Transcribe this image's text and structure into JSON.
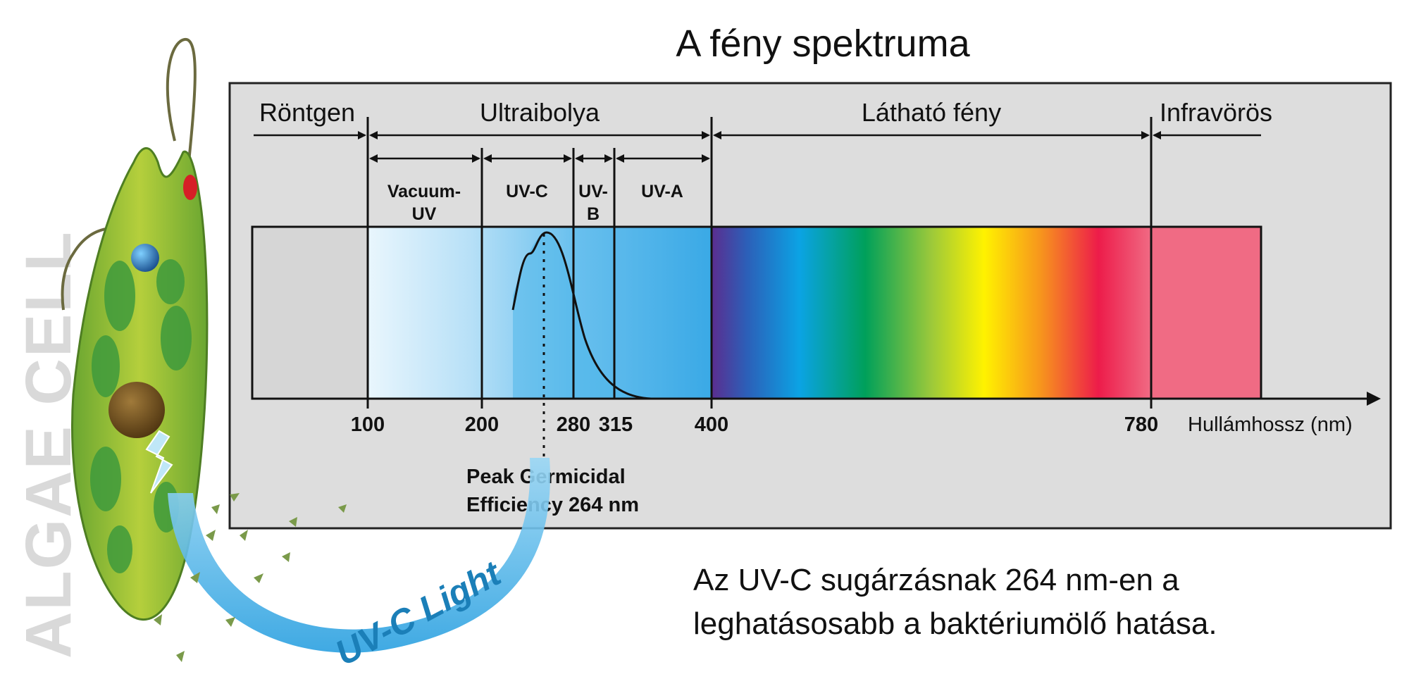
{
  "title": "A fény spektruma",
  "regions": {
    "xray": "Röntgen",
    "uv": "Ultraibolya",
    "visible": "Látható fény",
    "infrared": "Infravörös"
  },
  "uv_bands": {
    "vacuum_uv_line1": "Vacuum-",
    "vacuum_uv_line2": "UV",
    "uvc": "UV-C",
    "uvb_line1": "UV-",
    "uvb_line2": "B",
    "uva": "UV-A"
  },
  "axis": {
    "label": "Hullámhossz (nm)",
    "ticks": [
      "100",
      "200",
      "280",
      "315",
      "400",
      "780"
    ]
  },
  "peak": {
    "line1": "Peak Germicidal",
    "line2": "Efficiency 264 nm"
  },
  "caption": {
    "line1": "Az UV-C sugárzásnak 264 nm-en a",
    "line2": "leghatásosabb a baktériumölő hatása."
  },
  "uvc_light_label": "UV-C Light",
  "algae_label": "ALGAE CELL",
  "colors": {
    "panel": "#dddddd",
    "xray_band": "#d6d6d6",
    "infrared_band": "#f06b84",
    "uv_blue": "#41aee8",
    "algae_green": "#7ab83a"
  }
}
